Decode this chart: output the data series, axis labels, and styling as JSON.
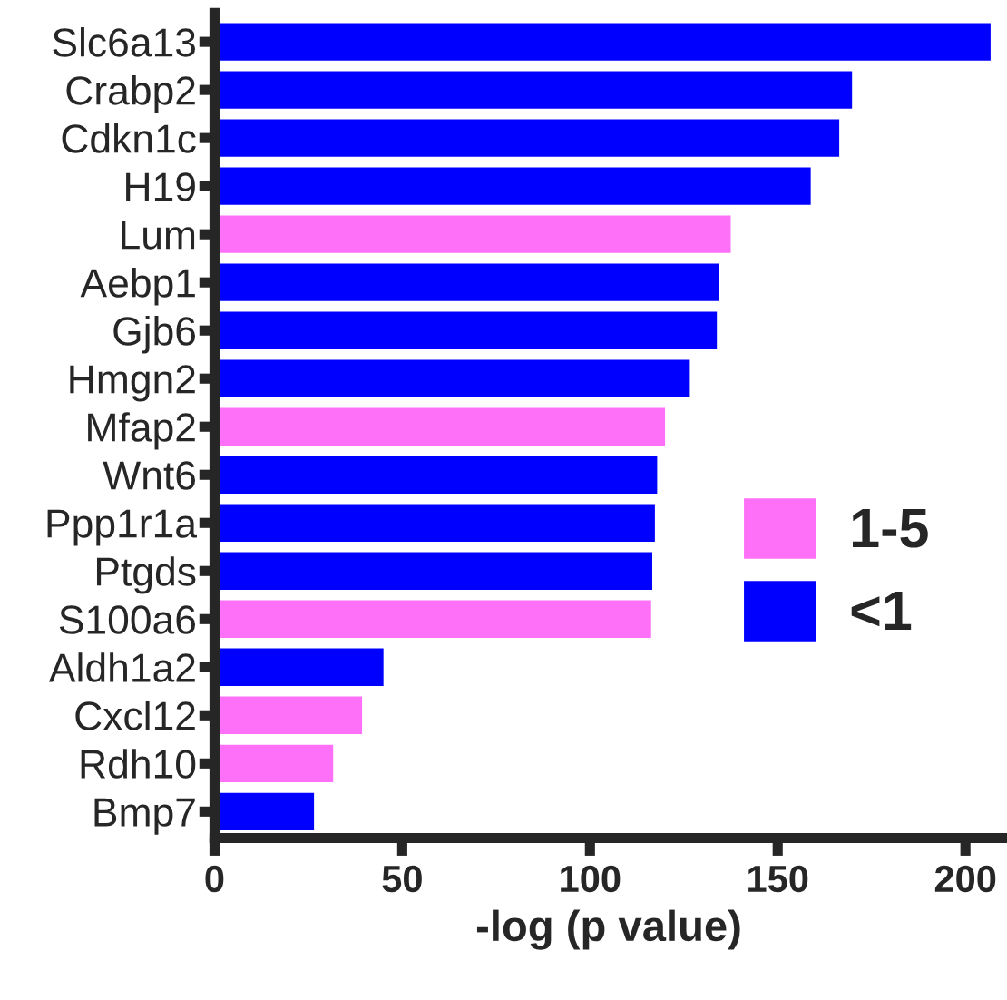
{
  "chart_data": {
    "type": "bar",
    "orientation": "horizontal",
    "xlabel": "-log (p value)",
    "categories": [
      "Slc6a13",
      "Crabp2",
      "Cdkn1c",
      "H19",
      "Lum",
      "Aebp1",
      "Gjb6",
      "Hmgn2",
      "Mfap2",
      "Wnt6",
      "Ppp1r1a",
      "Ptgds",
      "S100a6",
      "Aldh1a2",
      "Cxcl12",
      "Rdh10",
      "Bmp7"
    ],
    "series": [
      {
        "name": "1-5",
        "color": "#ff70f8",
        "values": [
          null,
          null,
          null,
          null,
          137.5,
          null,
          null,
          null,
          120,
          null,
          null,
          null,
          116.3,
          null,
          39.3,
          31.6,
          null
        ]
      },
      {
        "name": "<1",
        "color": "#0000ff",
        "values": [
          206.7,
          169.8,
          166.4,
          158.8,
          null,
          134.4,
          133.8,
          126.6,
          null,
          117.9,
          117.3,
          116.6,
          null,
          45,
          null,
          null,
          26.5
        ]
      }
    ],
    "xlim": [
      0,
      210
    ],
    "xticks": [
      0,
      50,
      100,
      150,
      200
    ],
    "grid": false,
    "legend": "right"
  }
}
